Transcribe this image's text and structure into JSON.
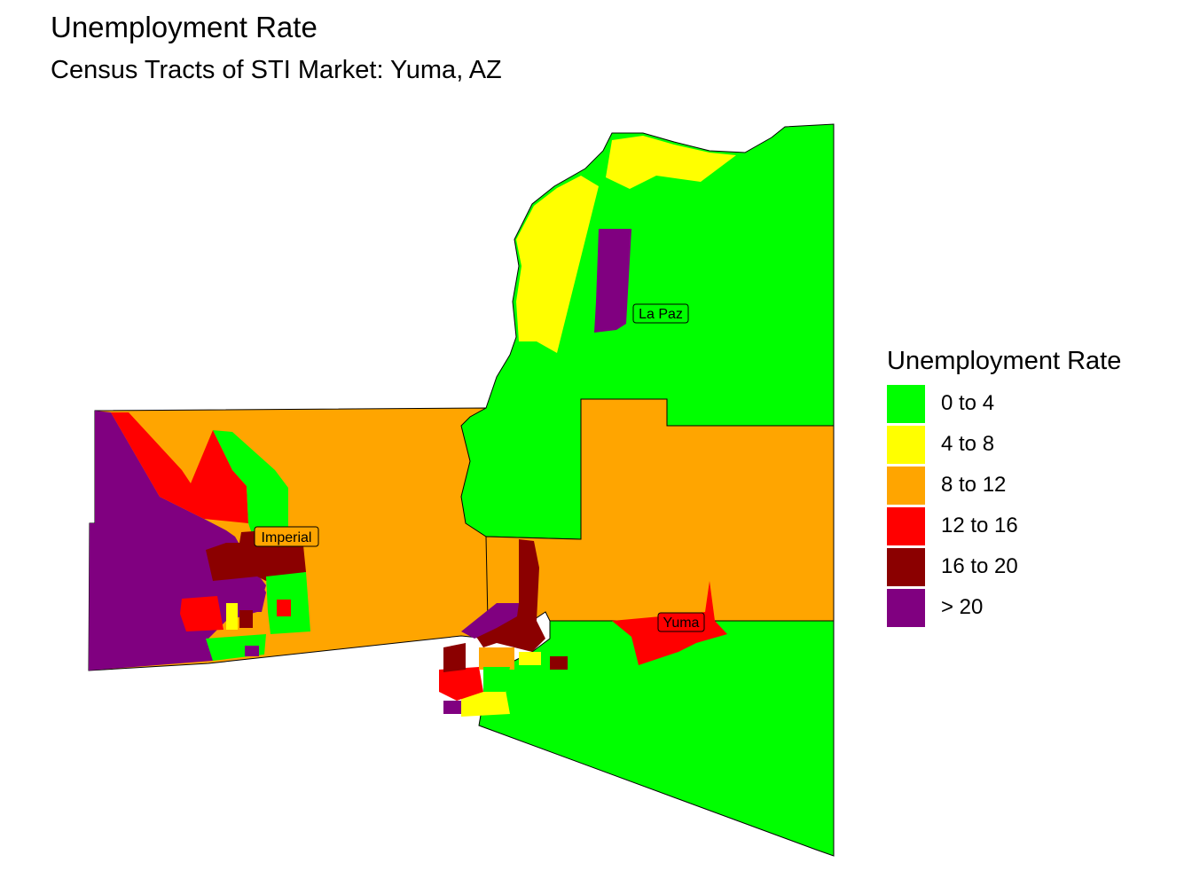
{
  "title": "Unemployment Rate",
  "subtitle": "Census Tracts of STI Market: Yuma, AZ",
  "legend": {
    "title": "Unemployment Rate",
    "items": [
      {
        "label": "0 to 4",
        "color": "#00ff00"
      },
      {
        "label": "4 to 8",
        "color": "#ffff00"
      },
      {
        "label": "8 to 12",
        "color": "#ffa500"
      },
      {
        "label": "12 to 16",
        "color": "#ff0000"
      },
      {
        "label": "16 to 20",
        "color": "#8b0000"
      },
      {
        "label": "> 20",
        "color": "#800080"
      }
    ]
  },
  "counties": {
    "imperial": "Imperial",
    "la_paz": "La Paz",
    "yuma": "Yuma"
  }
}
